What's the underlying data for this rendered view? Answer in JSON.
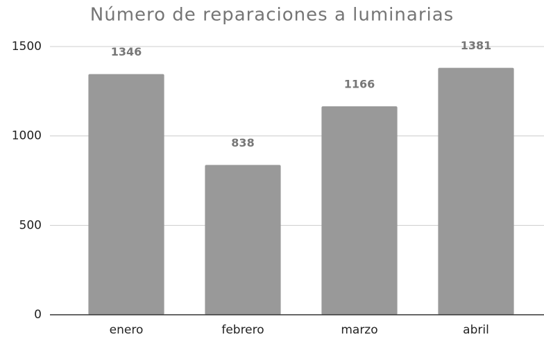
{
  "chart_data": {
    "type": "bar",
    "title": "Número de reparaciones a luminarias",
    "categories": [
      "enero",
      "febrero",
      "marzo",
      "abril"
    ],
    "values": [
      1346,
      838,
      1166,
      1381
    ],
    "color": "#999999",
    "ylim": [
      0,
      1500
    ],
    "yticks": [
      0,
      500,
      1000,
      1500
    ],
    "grid": true
  }
}
